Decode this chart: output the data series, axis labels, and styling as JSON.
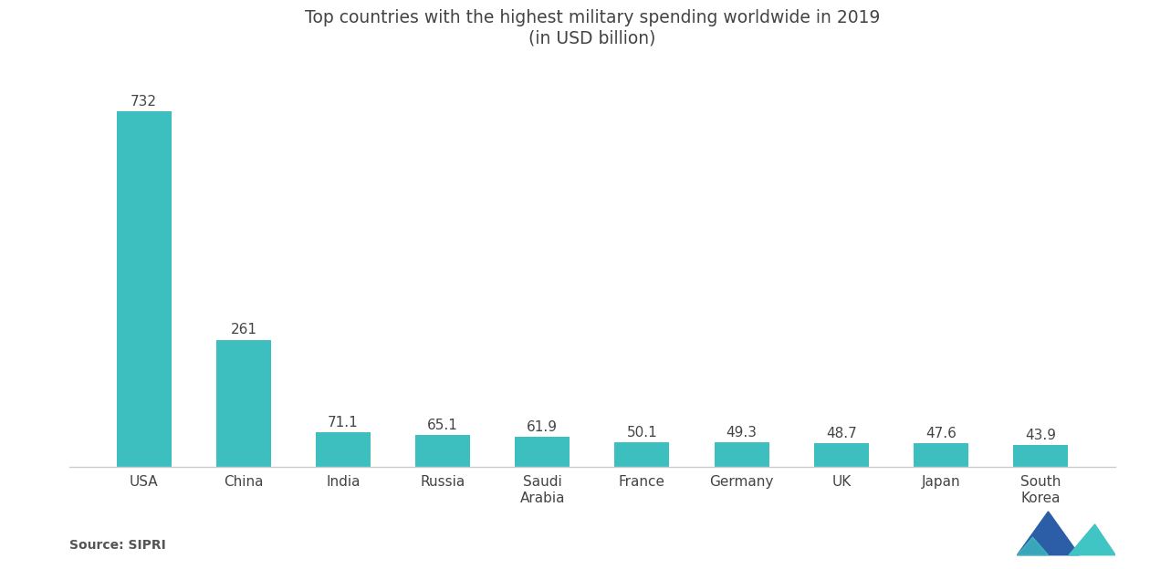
{
  "title_line1": "Top countries with the highest military spending worldwide in 2019",
  "title_line2": "(in USD billion)",
  "categories": [
    "USA",
    "China",
    "India",
    "Russia",
    "Saudi\nArabia",
    "France",
    "Germany",
    "UK",
    "Japan",
    "South\nKorea"
  ],
  "values": [
    732,
    261,
    71.1,
    65.1,
    61.9,
    50.1,
    49.3,
    48.7,
    47.6,
    43.9
  ],
  "bar_color": "#3DBFBF",
  "background_color": "#ffffff",
  "source_text": "Source: SIPRI",
  "ylim": [
    0,
    820
  ],
  "label_fontsize": 11,
  "title_fontsize": 13.5,
  "source_fontsize": 10,
  "tick_fontsize": 11,
  "logo_left_color": "#2B5EA7",
  "logo_right_color": "#40C4C4",
  "logo_mid_color": "#3A9EC8"
}
